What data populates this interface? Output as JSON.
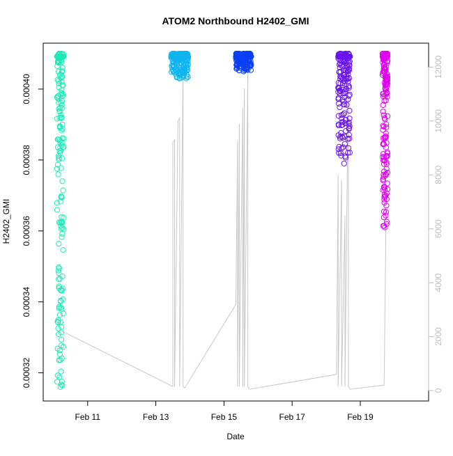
{
  "chart_data": {
    "type": "scatter",
    "title": "ATOM2 Northbound H2402_GMI",
    "xlabel": "Date",
    "ylabel": "H2402_GMI",
    "x_ticks": [
      "Feb 11",
      "Feb 13",
      "Feb 15",
      "Feb 17",
      "Feb 19"
    ],
    "x_tick_days": [
      11,
      13,
      15,
      17,
      19
    ],
    "xlim_days": [
      9.9,
      20.8
    ],
    "y_ticks": [
      "0.00032",
      "0.00034",
      "0.00036",
      "0.00038",
      "0.00040"
    ],
    "y_tick_values": [
      0.00032,
      0.00034,
      0.00036,
      0.00038,
      0.0004
    ],
    "ylim": [
      0.000315,
      0.00041
    ],
    "y2_ticks": [
      "0",
      "2000",
      "4000",
      "6000",
      "8000",
      "10000",
      "12000"
    ],
    "y2_tick_values": [
      0,
      2000,
      4000,
      6000,
      8000,
      10000,
      12000
    ],
    "y2lim": [
      0,
      12500
    ],
    "grid": false,
    "series": [
      {
        "color": "#1de9b6",
        "day_range": [
          10.1,
          10.3
        ],
        "y_range": [
          0.000316,
          0.00041
        ]
      },
      {
        "color": "#0fb4ee",
        "day_range": [
          13.45,
          13.95
        ],
        "y_range": [
          0.000403,
          0.00041
        ]
      },
      {
        "color": "#0a40f5",
        "day_range": [
          15.35,
          15.8
        ],
        "y_range": [
          0.000405,
          0.00041
        ]
      },
      {
        "color": "#6a13f0",
        "day_range": [
          18.35,
          18.7
        ],
        "y_range": [
          0.000379,
          0.00041
        ]
      },
      {
        "color": "#e100f0",
        "day_range": [
          19.65,
          19.8
        ],
        "y_range": [
          0.000361,
          0.00041
        ]
      }
    ],
    "secondary_line": {
      "color": "#c8c8c8",
      "points": [
        [
          10.25,
          2200
        ],
        [
          13.5,
          150
        ],
        [
          13.5,
          9200
        ],
        [
          13.55,
          9300
        ],
        [
          13.55,
          150
        ],
        [
          13.65,
          10000
        ],
        [
          13.7,
          10100
        ],
        [
          13.7,
          150
        ],
        [
          13.8,
          11900
        ],
        [
          13.8,
          150
        ],
        [
          13.85,
          100
        ],
        [
          15.35,
          3200
        ],
        [
          15.4,
          9300
        ],
        [
          15.4,
          150
        ],
        [
          15.45,
          9900
        ],
        [
          15.45,
          150
        ],
        [
          15.55,
          10500
        ],
        [
          15.55,
          150
        ],
        [
          15.6,
          11200
        ],
        [
          15.6,
          150
        ],
        [
          15.7,
          11800
        ],
        [
          15.7,
          150
        ],
        [
          15.75,
          50
        ],
        [
          18.3,
          600
        ],
        [
          18.35,
          8000
        ],
        [
          18.35,
          150
        ],
        [
          18.45,
          7800
        ],
        [
          18.45,
          150
        ],
        [
          18.55,
          6500
        ],
        [
          18.55,
          150
        ],
        [
          18.65,
          11900
        ],
        [
          18.65,
          150
        ],
        [
          18.7,
          50
        ],
        [
          19.7,
          200
        ],
        [
          19.75,
          6100
        ],
        [
          19.75,
          12400
        ]
      ]
    }
  }
}
